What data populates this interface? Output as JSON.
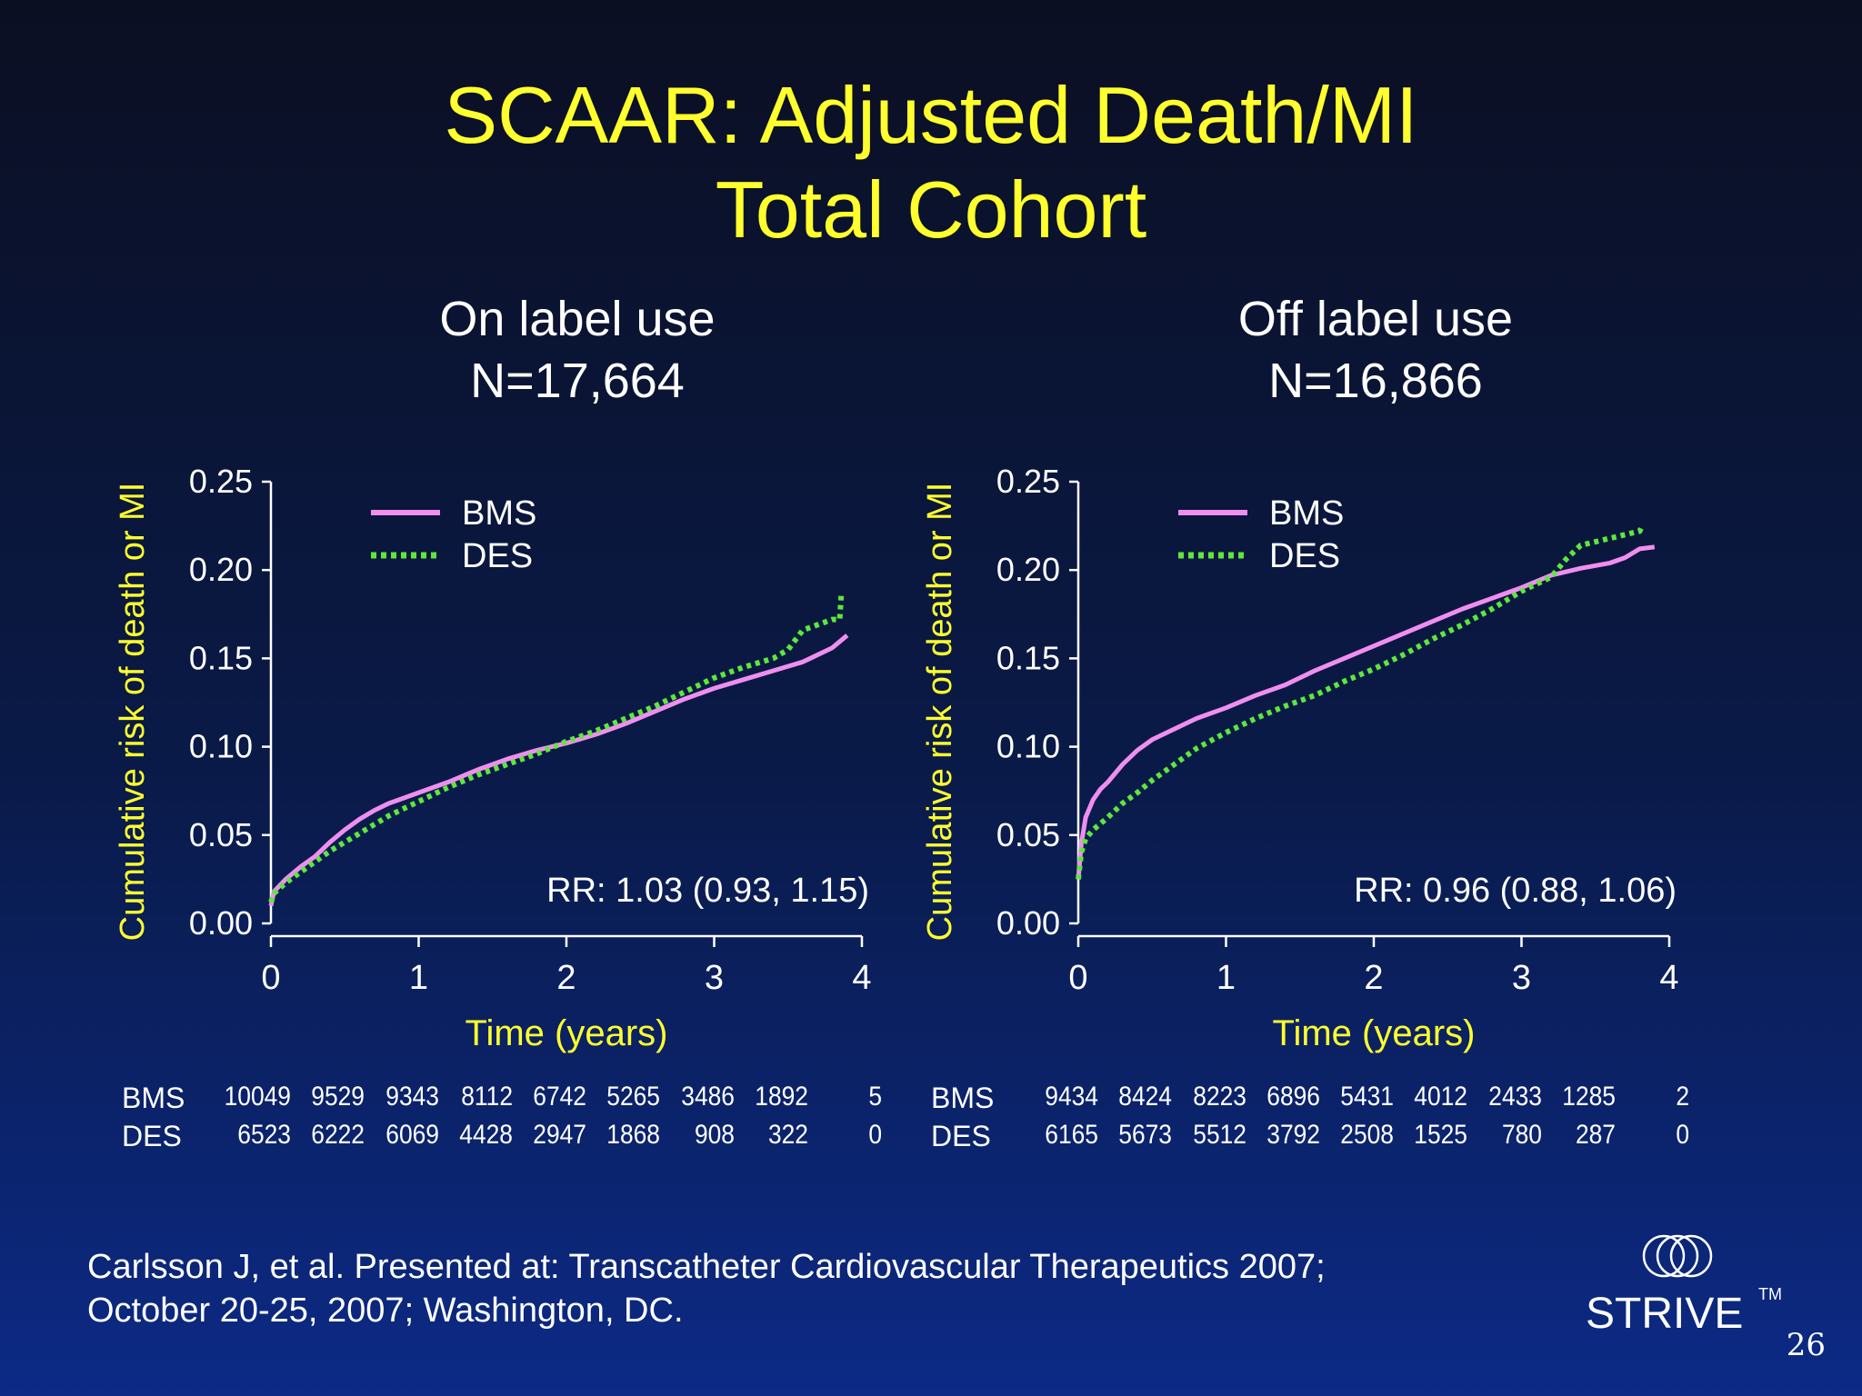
{
  "title": {
    "line1": "SCAAR: Adjusted Death/MI",
    "line2": "Total Cohort"
  },
  "colors": {
    "title": "#ffff2e",
    "axis_label": "#ffff2e",
    "bms": "#f08ef0",
    "des": "#5de83a",
    "text": "#ffffff"
  },
  "chart_data": [
    {
      "type": "line",
      "panel_title": "On label use",
      "panel_n": "N=17,664",
      "xlabel": "Time (years)",
      "ylabel": "Cumulative risk of death or MI",
      "xlim": [
        0,
        4
      ],
      "ylim": [
        0,
        0.25
      ],
      "x_ticks": [
        "0",
        "1",
        "2",
        "3",
        "4"
      ],
      "y_ticks": [
        "0.00",
        "0.05",
        "0.10",
        "0.15",
        "0.20",
        "0.25"
      ],
      "legend_position": "top-left",
      "annotation": "RR: 1.03 (0.93, 1.15)",
      "series": [
        {
          "name": "BMS",
          "style": "solid",
          "color": "#f08ef0",
          "x": [
            0,
            0.02,
            0.1,
            0.2,
            0.3,
            0.4,
            0.5,
            0.6,
            0.7,
            0.8,
            0.9,
            1.0,
            1.2,
            1.4,
            1.6,
            1.8,
            2.0,
            2.2,
            2.4,
            2.6,
            2.8,
            3.0,
            3.2,
            3.4,
            3.6,
            3.8,
            3.9
          ],
          "y": [
            0.01,
            0.018,
            0.025,
            0.032,
            0.038,
            0.046,
            0.053,
            0.059,
            0.064,
            0.068,
            0.071,
            0.074,
            0.08,
            0.087,
            0.093,
            0.098,
            0.102,
            0.107,
            0.113,
            0.12,
            0.127,
            0.133,
            0.138,
            0.143,
            0.148,
            0.156,
            0.163
          ]
        },
        {
          "name": "DES",
          "style": "dotted",
          "color": "#5de83a",
          "x": [
            0,
            0.02,
            0.1,
            0.2,
            0.3,
            0.4,
            0.5,
            0.6,
            0.7,
            0.8,
            0.9,
            1.0,
            1.2,
            1.4,
            1.6,
            1.8,
            2.0,
            2.2,
            2.4,
            2.6,
            2.8,
            3.0,
            3.2,
            3.4,
            3.5,
            3.6,
            3.8,
            3.85,
            3.86
          ],
          "y": [
            0.012,
            0.017,
            0.023,
            0.029,
            0.035,
            0.041,
            0.046,
            0.051,
            0.056,
            0.061,
            0.065,
            0.069,
            0.077,
            0.084,
            0.09,
            0.096,
            0.103,
            0.109,
            0.116,
            0.123,
            0.131,
            0.139,
            0.145,
            0.15,
            0.155,
            0.166,
            0.172,
            0.172,
            0.186
          ]
        }
      ],
      "at_risk": {
        "times": [
          0,
          0.5,
          1.0,
          1.5,
          2.0,
          2.5,
          3.0,
          3.5,
          4.0
        ],
        "BMS": [
          "10049",
          "9529",
          "9343",
          "8112",
          "6742",
          "5265",
          "3486",
          "1892",
          "5"
        ],
        "DES": [
          "6523",
          "6222",
          "6069",
          "4428",
          "2947",
          "1868",
          "908",
          "322",
          "0"
        ]
      }
    },
    {
      "type": "line",
      "panel_title": "Off label use",
      "panel_n": "N=16,866",
      "xlabel": "Time (years)",
      "ylabel": "Cumulative risk of death or MI",
      "xlim": [
        0,
        4
      ],
      "ylim": [
        0,
        0.25
      ],
      "x_ticks": [
        "0",
        "1",
        "2",
        "3",
        "4"
      ],
      "y_ticks": [
        "0.00",
        "0.05",
        "0.10",
        "0.15",
        "0.20",
        "0.25"
      ],
      "legend_position": "top-left",
      "annotation": "RR: 0.96 (0.88, 1.06)",
      "series": [
        {
          "name": "BMS",
          "style": "solid",
          "color": "#f08ef0",
          "x": [
            0,
            0.02,
            0.05,
            0.1,
            0.15,
            0.2,
            0.3,
            0.4,
            0.5,
            0.6,
            0.8,
            1.0,
            1.2,
            1.4,
            1.6,
            1.8,
            2.0,
            2.2,
            2.4,
            2.6,
            2.8,
            3.0,
            3.2,
            3.4,
            3.6,
            3.7,
            3.8,
            3.9
          ],
          "y": [
            0.025,
            0.045,
            0.06,
            0.07,
            0.076,
            0.08,
            0.09,
            0.098,
            0.104,
            0.108,
            0.116,
            0.122,
            0.129,
            0.135,
            0.143,
            0.15,
            0.157,
            0.164,
            0.171,
            0.178,
            0.184,
            0.19,
            0.197,
            0.201,
            0.204,
            0.207,
            0.212,
            0.213
          ]
        },
        {
          "name": "DES",
          "style": "dotted",
          "color": "#5de83a",
          "x": [
            0,
            0.02,
            0.05,
            0.1,
            0.2,
            0.3,
            0.4,
            0.5,
            0.6,
            0.8,
            1.0,
            1.2,
            1.4,
            1.6,
            1.8,
            2.0,
            2.2,
            2.4,
            2.6,
            2.8,
            3.0,
            3.2,
            3.3,
            3.4,
            3.6,
            3.8,
            3.82
          ],
          "y": [
            0.025,
            0.04,
            0.048,
            0.053,
            0.06,
            0.068,
            0.074,
            0.081,
            0.087,
            0.099,
            0.108,
            0.116,
            0.123,
            0.129,
            0.137,
            0.144,
            0.152,
            0.161,
            0.169,
            0.178,
            0.188,
            0.196,
            0.206,
            0.214,
            0.218,
            0.222,
            0.226
          ]
        }
      ],
      "at_risk": {
        "times": [
          0,
          0.5,
          1.0,
          1.5,
          2.0,
          2.5,
          3.0,
          3.5,
          4.0
        ],
        "BMS": [
          "9434",
          "8424",
          "8223",
          "6896",
          "5431",
          "4012",
          "2433",
          "1285",
          "2"
        ],
        "DES": [
          "6165",
          "5673",
          "5512",
          "3792",
          "2508",
          "1525",
          "780",
          "287",
          "0"
        ]
      }
    }
  ],
  "citation": {
    "line1": "Carlsson J, et al. Presented at: Transcatheter Cardiovascular Therapeutics 2007;",
    "line2": "October 20-25, 2007; Washington, DC."
  },
  "logo": {
    "word": "STRIVE",
    "tm": "TM",
    "icon": "three-rings-icon"
  },
  "page_number": "26"
}
